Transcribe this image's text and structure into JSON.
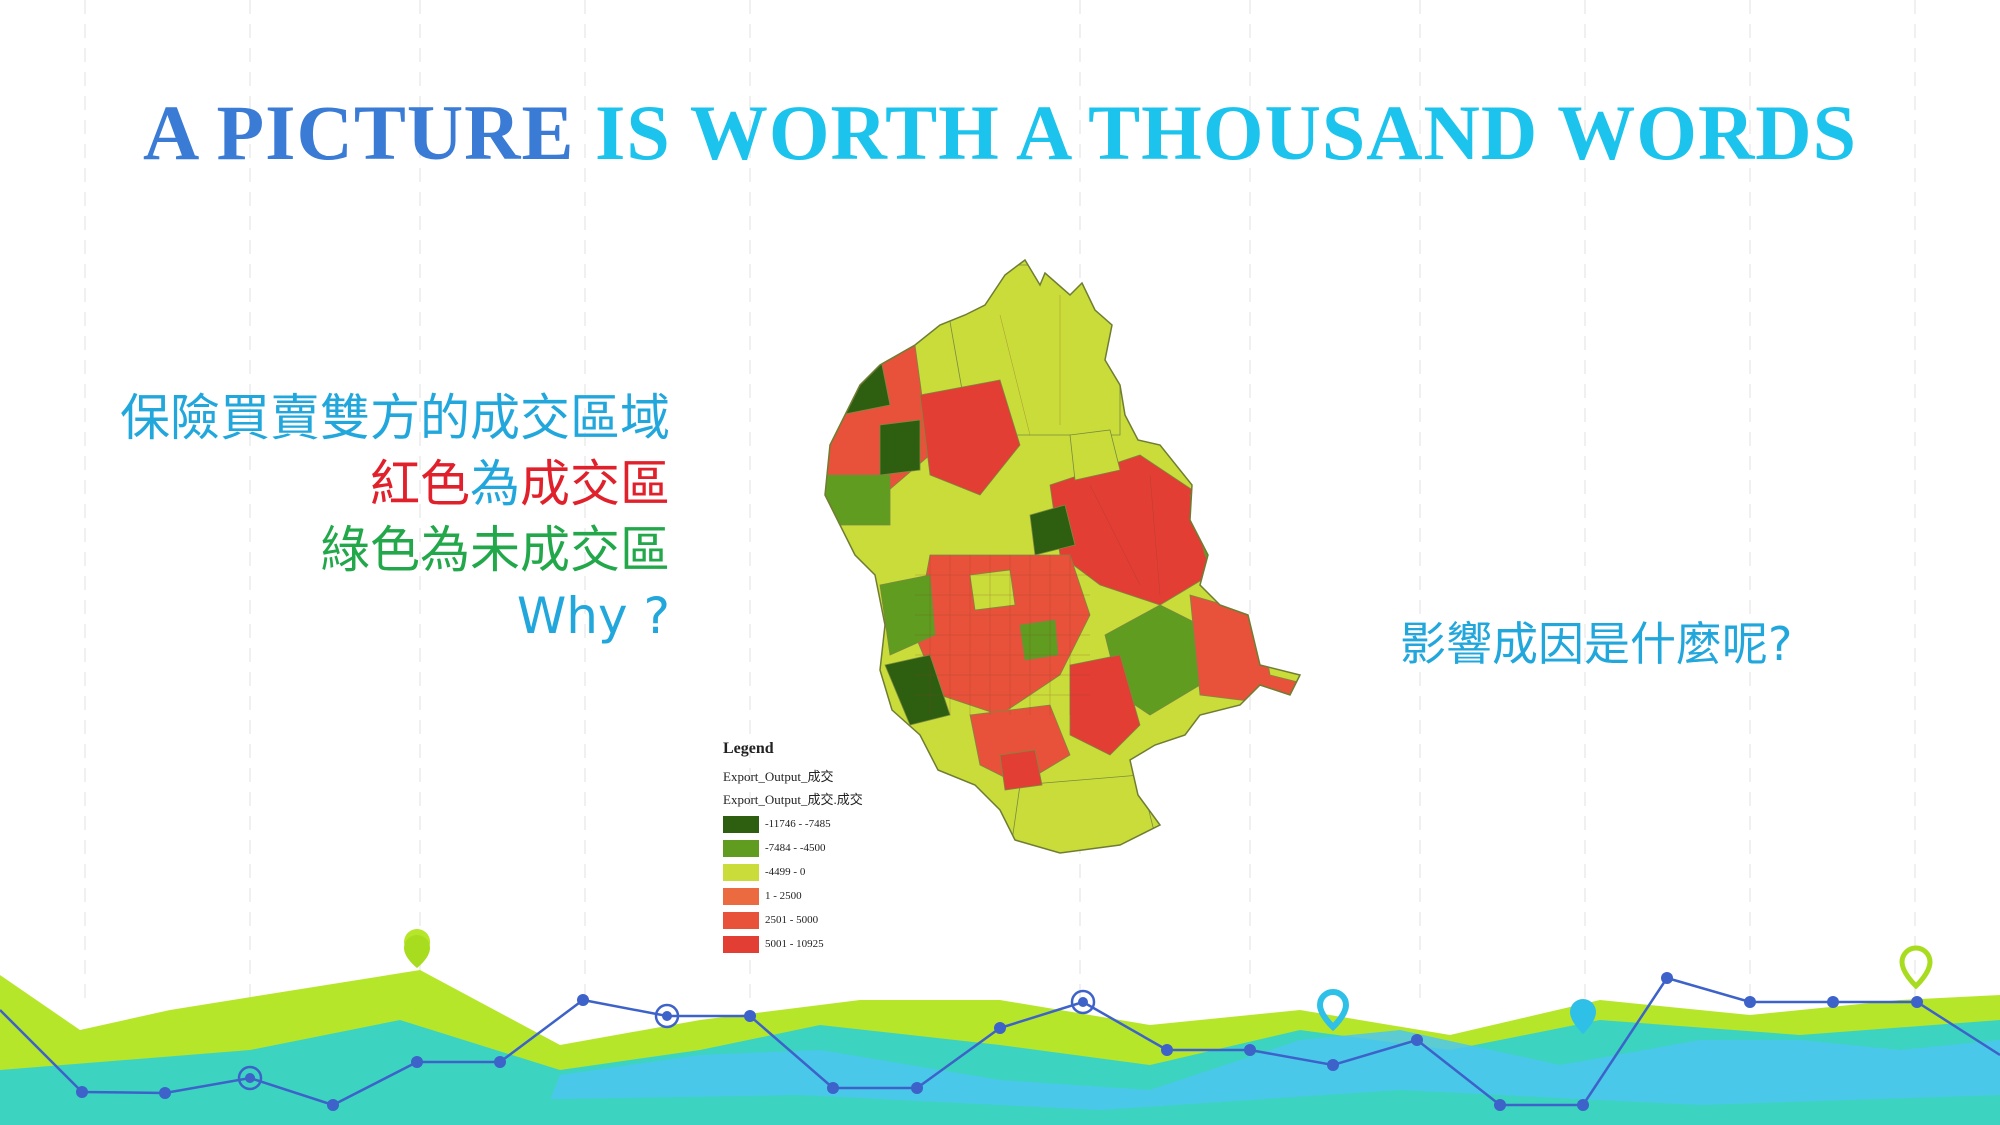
{
  "title": {
    "part1": "A PICTURE",
    "part2": " IS WORTH A THOUSAND WORDS"
  },
  "left_text": {
    "line1": "保險買賣雙方的成交區域",
    "line2_a": "紅色",
    "line2_b": "為",
    "line2_c": "成交區",
    "line3": "綠色為未成交區",
    "line4": "Why ?"
  },
  "right_question": "影響成因是什麼呢?",
  "legend": {
    "title": "Legend",
    "layer1": "Export_Output_成交",
    "layer2": "Export_Output_成交.成交",
    "classes": [
      {
        "label": "-11746 - -7485",
        "color": "#2e5e10"
      },
      {
        "label": "-7484 - -4500",
        "color": "#5f9c1f"
      },
      {
        "label": "-4499 - 0",
        "color": "#c9dc3a"
      },
      {
        "label": "1 - 2500",
        "color": "#ec6a40"
      },
      {
        "label": "2501 - 5000",
        "color": "#e8523a"
      },
      {
        "label": "5001 - 10925",
        "color": "#e23e34"
      }
    ]
  },
  "colors": {
    "title_dark": "#3a7bd5",
    "title_light": "#1cc3ec",
    "text_blue": "#22a7dc",
    "text_red": "#e0202a",
    "text_green": "#22a84a",
    "footer_lime": "#b6e62a",
    "footer_teal": "#3cd4c0",
    "footer_sky": "#4cc6f0",
    "footer_line": "#3d62c9"
  },
  "icons": [
    "map-pin-icon",
    "target-ring-icon"
  ]
}
